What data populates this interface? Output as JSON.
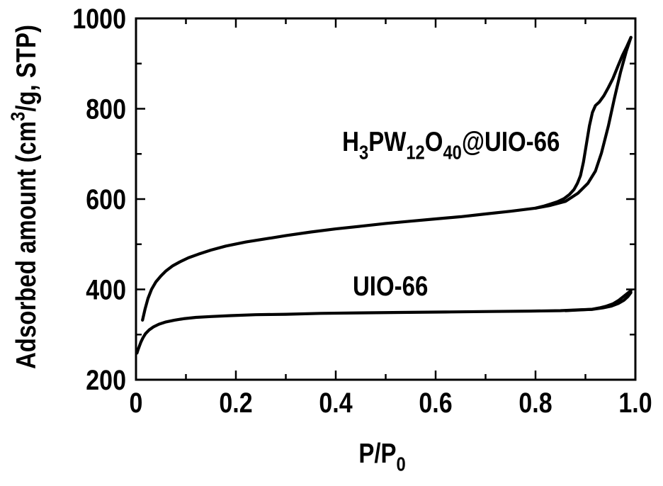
{
  "figure": {
    "background": "#ffffff",
    "foreground": "#000000"
  },
  "chart_data": {
    "type": "line",
    "title": "",
    "xlabel": "P/P0",
    "xlabel_rich": [
      {
        "t": "P/P",
        "style": "normal"
      },
      {
        "t": "0",
        "style": "sub"
      }
    ],
    "ylabel": "Adsorbed amount (cm3/g, STP)",
    "ylabel_rich": [
      {
        "t": "Adsorbed amount (cm",
        "style": "normal"
      },
      {
        "t": "3",
        "style": "sup"
      },
      {
        "t": "/g, STP)",
        "style": "normal"
      }
    ],
    "xlim": [
      0,
      1.0
    ],
    "ylim": [
      200,
      1000
    ],
    "x_major_ticks": [
      0,
      0.2,
      0.4,
      0.6,
      0.8,
      1.0
    ],
    "x_tick_labels": [
      "0",
      "0.2",
      "0.4",
      "0.6",
      "0.8",
      "1.0"
    ],
    "x_minor_ticks": [
      0.1,
      0.3,
      0.5,
      0.7,
      0.9
    ],
    "y_major_ticks": [
      200,
      400,
      600,
      800,
      1000
    ],
    "y_tick_labels": [
      "200",
      "400",
      "600",
      "800",
      "1000"
    ],
    "y_minor_ticks": [
      300,
      500,
      700,
      900
    ],
    "grid": false,
    "legend_position": "inline-annotations",
    "line_color": "#000000",
    "series": [
      {
        "name": "H3PW12O40@UIO-66",
        "label_rich": [
          {
            "t": "H",
            "style": "normal"
          },
          {
            "t": "3",
            "style": "sub"
          },
          {
            "t": "PW",
            "style": "normal"
          },
          {
            "t": "12",
            "style": "sub"
          },
          {
            "t": "O",
            "style": "normal"
          },
          {
            "t": "40",
            "style": "sub"
          },
          {
            "t": "@UIO-66",
            "style": "normal"
          }
        ],
        "label_anchor": {
          "x": 0.413,
          "y": 707
        },
        "color": "#000000",
        "adsorption": [
          [
            0.013,
            332
          ],
          [
            0.018,
            356
          ],
          [
            0.024,
            380
          ],
          [
            0.031,
            400
          ],
          [
            0.04,
            417
          ],
          [
            0.05,
            430
          ],
          [
            0.06,
            441
          ],
          [
            0.073,
            452
          ],
          [
            0.088,
            461
          ],
          [
            0.105,
            470
          ],
          [
            0.125,
            478
          ],
          [
            0.15,
            487
          ],
          [
            0.18,
            496
          ],
          [
            0.22,
            505
          ],
          [
            0.26,
            512
          ],
          [
            0.3,
            519
          ],
          [
            0.35,
            527
          ],
          [
            0.4,
            534
          ],
          [
            0.45,
            540
          ],
          [
            0.5,
            546
          ],
          [
            0.55,
            551
          ],
          [
            0.6,
            556
          ],
          [
            0.65,
            561
          ],
          [
            0.7,
            567
          ],
          [
            0.75,
            573
          ],
          [
            0.8,
            580
          ],
          [
            0.83,
            586
          ],
          [
            0.86,
            595
          ],
          [
            0.885,
            613
          ],
          [
            0.905,
            635
          ],
          [
            0.92,
            662
          ],
          [
            0.932,
            702
          ],
          [
            0.946,
            762
          ],
          [
            0.958,
            823
          ],
          [
            0.97,
            880
          ],
          [
            0.982,
            928
          ],
          [
            0.991,
            958
          ]
        ],
        "desorption": [
          [
            0.991,
            958
          ],
          [
            0.983,
            938
          ],
          [
            0.974,
            918
          ],
          [
            0.965,
            894
          ],
          [
            0.955,
            867
          ],
          [
            0.946,
            847
          ],
          [
            0.937,
            829
          ],
          [
            0.928,
            815
          ],
          [
            0.92,
            807
          ],
          [
            0.914,
            792
          ],
          [
            0.908,
            762
          ],
          [
            0.902,
            722
          ],
          [
            0.896,
            682
          ],
          [
            0.89,
            652
          ],
          [
            0.884,
            635
          ],
          [
            0.877,
            621
          ],
          [
            0.868,
            610
          ],
          [
            0.857,
            601
          ],
          [
            0.844,
            594
          ],
          [
            0.83,
            589
          ],
          [
            0.815,
            584
          ],
          [
            0.8,
            580
          ]
        ]
      },
      {
        "name": "UIO-66",
        "label_rich": [
          {
            "t": "UIO-66",
            "style": "normal"
          }
        ],
        "label_anchor": {
          "x": 0.434,
          "y": 387
        },
        "color": "#000000",
        "adsorption": [
          [
            0.002,
            259
          ],
          [
            0.004,
            266
          ],
          [
            0.007,
            275
          ],
          [
            0.01,
            284
          ],
          [
            0.014,
            293
          ],
          [
            0.019,
            302
          ],
          [
            0.026,
            310
          ],
          [
            0.035,
            317
          ],
          [
            0.046,
            323
          ],
          [
            0.06,
            328
          ],
          [
            0.077,
            332
          ],
          [
            0.095,
            335
          ],
          [
            0.12,
            338
          ],
          [
            0.15,
            340
          ],
          [
            0.19,
            342
          ],
          [
            0.24,
            344
          ],
          [
            0.3,
            345
          ],
          [
            0.37,
            347
          ],
          [
            0.45,
            348
          ],
          [
            0.53,
            349
          ],
          [
            0.62,
            350
          ],
          [
            0.71,
            351
          ],
          [
            0.79,
            352
          ],
          [
            0.85,
            353
          ],
          [
            0.89,
            355
          ],
          [
            0.915,
            356
          ],
          [
            0.935,
            359
          ],
          [
            0.952,
            363
          ],
          [
            0.966,
            369
          ],
          [
            0.977,
            376
          ],
          [
            0.985,
            384
          ],
          [
            0.991,
            393
          ]
        ],
        "desorption": [
          [
            0.991,
            397
          ],
          [
            0.985,
            392
          ],
          [
            0.977,
            385
          ],
          [
            0.967,
            376
          ],
          [
            0.955,
            368
          ],
          [
            0.942,
            363
          ],
          [
            0.928,
            359
          ],
          [
            0.913,
            356
          ],
          [
            0.898,
            355
          ],
          [
            0.88,
            354
          ],
          [
            0.86,
            353
          ]
        ]
      }
    ]
  }
}
